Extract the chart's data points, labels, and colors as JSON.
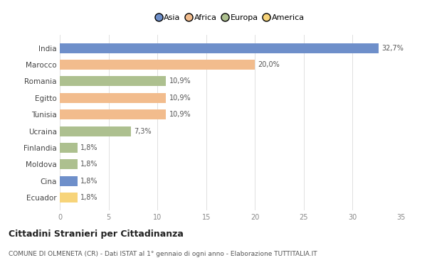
{
  "categories": [
    "India",
    "Marocco",
    "Romania",
    "Egitto",
    "Tunisia",
    "Ucraina",
    "Finlandia",
    "Moldova",
    "Cina",
    "Ecuador"
  ],
  "values": [
    32.7,
    20.0,
    10.9,
    10.9,
    10.9,
    7.3,
    1.8,
    1.8,
    1.8,
    1.8
  ],
  "labels": [
    "32,7%",
    "20,0%",
    "10,9%",
    "10,9%",
    "10,9%",
    "7,3%",
    "1,8%",
    "1,8%",
    "1,8%",
    "1,8%"
  ],
  "colors": [
    "#6e8fca",
    "#f2bc8d",
    "#adc08f",
    "#f2bc8d",
    "#f2bc8d",
    "#adc08f",
    "#adc08f",
    "#adc08f",
    "#6e8fca",
    "#f7d47a"
  ],
  "legend_labels": [
    "Asia",
    "Africa",
    "Europa",
    "America"
  ],
  "legend_colors": [
    "#6e8fca",
    "#f2bc8d",
    "#adc08f",
    "#f7d47a"
  ],
  "xlim": [
    0,
    35
  ],
  "xticks": [
    0,
    5,
    10,
    15,
    20,
    25,
    30,
    35
  ],
  "title": "Cittadini Stranieri per Cittadinanza",
  "subtitle": "COMUNE DI OLMENETA (CR) - Dati ISTAT al 1° gennaio di ogni anno - Elaborazione TUTTITALIA.IT",
  "background_color": "#ffffff",
  "grid_color": "#e0e0e0"
}
